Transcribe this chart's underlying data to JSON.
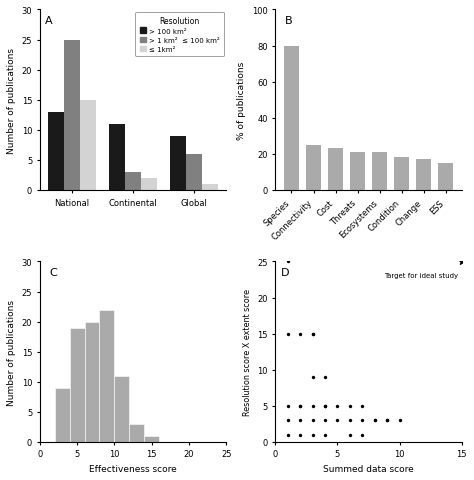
{
  "panel_A": {
    "categories": [
      "National",
      "Continental",
      "Global"
    ],
    "dark": [
      13,
      11,
      9
    ],
    "medium": [
      25,
      3,
      6
    ],
    "light": [
      15,
      2,
      1
    ],
    "legend_labels": [
      "> 100 km²",
      "> 1 km²  ≤ 100 km²",
      "≤ 1km²"
    ],
    "ylabel": "Number of publications",
    "ylim": [
      0,
      30
    ],
    "yticks": [
      0,
      5,
      10,
      15,
      20,
      25,
      30
    ]
  },
  "panel_B": {
    "categories": [
      "Species",
      "Connectivity",
      "Cost",
      "Threats",
      "Ecosystems",
      "Condition",
      "Change",
      "ESS"
    ],
    "values": [
      80,
      25,
      23,
      21,
      21,
      18,
      17,
      15
    ],
    "ylabel": "% of publications",
    "ylim": [
      0,
      100
    ],
    "yticks": [
      0,
      20,
      40,
      60,
      80,
      100
    ]
  },
  "panel_C": {
    "bin_edges": [
      2,
      4,
      6,
      8,
      10,
      12,
      14,
      16
    ],
    "values": [
      9,
      19,
      20,
      22,
      11,
      3,
      1
    ],
    "ylabel": "Number of publications",
    "xlabel": "Effectiveness score",
    "ylim": [
      0,
      30
    ],
    "yticks": [
      0,
      5,
      10,
      15,
      20,
      25,
      30
    ],
    "xlim": [
      0,
      25
    ],
    "xticks": [
      0,
      5,
      10,
      15,
      20,
      25
    ]
  },
  "panel_D": {
    "points_x": [
      1,
      1,
      2,
      3,
      3,
      3,
      4,
      4,
      1,
      2,
      2,
      3,
      4,
      5,
      6,
      7,
      8,
      9,
      1,
      2,
      3,
      4,
      5,
      6,
      7,
      8,
      9,
      10,
      1,
      2,
      3,
      4,
      6,
      7
    ],
    "points_y": [
      25,
      15,
      15,
      15,
      15,
      9,
      9,
      5,
      5,
      5,
      5,
      5,
      5,
      5,
      5,
      5,
      3,
      3,
      3,
      3,
      3,
      3,
      3,
      3,
      3,
      3,
      3,
      3,
      1,
      1,
      1,
      1,
      1,
      1
    ],
    "target_x": 15,
    "target_y": 25,
    "xlabel": "Summed data score",
    "ylabel": "Resolution score X extent score",
    "xlim": [
      0,
      15
    ],
    "ylim": [
      0,
      25
    ],
    "xticks": [
      0,
      5,
      10,
      15
    ],
    "yticks": [
      0,
      5,
      10,
      15,
      20,
      25
    ],
    "annotation": "Target for ideal study"
  }
}
